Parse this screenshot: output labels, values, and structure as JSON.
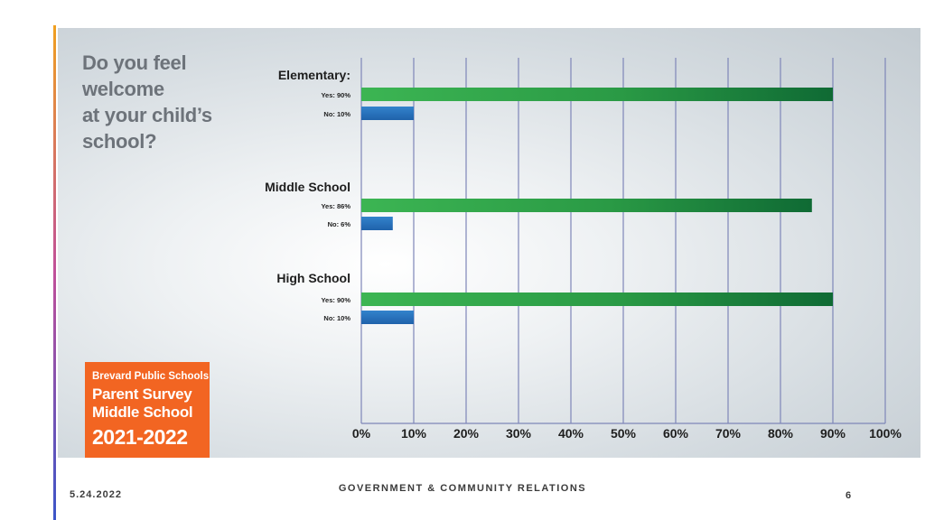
{
  "question": [
    "Do you feel",
    "welcome",
    "at your child’s",
    "school?"
  ],
  "badge": {
    "line1": "Brevard Public Schools",
    "line2": "Parent Survey",
    "line3": "Middle School",
    "line4": "2021-2022",
    "color": "#f26522"
  },
  "footer": {
    "date": "5.24.2022",
    "title": "GOVERNMENT & COMMUNITY RELATIONS",
    "page": "6"
  },
  "colors": {
    "yes": "#2e9e48",
    "no": "#2b74c0",
    "grid": "#7e86b8"
  },
  "chart_data": {
    "type": "bar",
    "orientation": "horizontal",
    "title": "Do you feel welcome at your child’s school?",
    "categories": [
      "Elementary:",
      "Middle School",
      "High School"
    ],
    "series": [
      {
        "name": "Yes",
        "values": [
          90,
          86,
          90
        ],
        "labels": [
          "Yes: 90%",
          "Yes: 86%",
          "Yes: 90%"
        ]
      },
      {
        "name": "No",
        "values": [
          10,
          6,
          10
        ],
        "labels": [
          "No: 10%",
          "No: 6%",
          "No: 10%"
        ]
      }
    ],
    "xlim": [
      0,
      100
    ],
    "xticks": [
      "0%",
      "10%",
      "20%",
      "30%",
      "40%",
      "50%",
      "60%",
      "70%",
      "80%",
      "90%",
      "100%"
    ],
    "grid": true
  }
}
